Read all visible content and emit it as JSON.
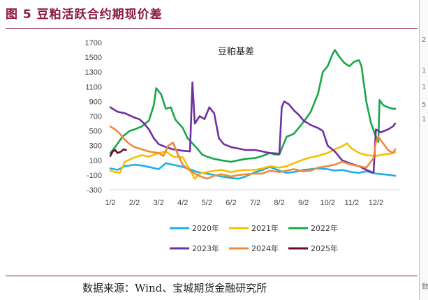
{
  "header": {
    "figure_title": "图 5 豆粕活跃合约期现价差"
  },
  "footer": {
    "source": "数据来源：Wind、宝城期货金融研究所"
  },
  "right_strip": {
    "glyphs": [
      "2",
      "1",
      "1",
      "5",
      "1",
      "数"
    ]
  },
  "chart_data": {
    "type": "line",
    "title": "豆粕基差",
    "xlabel": "",
    "ylabel": "",
    "ylim": [
      -300,
      1700
    ],
    "yticks": [
      1700,
      1500,
      1300,
      1100,
      900,
      700,
      500,
      300,
      100,
      -100,
      -300
    ],
    "x_domain": [
      0,
      12
    ],
    "xticks": [
      {
        "label": "1/2",
        "x": 0
      },
      {
        "label": "2/2",
        "x": 1
      },
      {
        "label": "3/2",
        "x": 2
      },
      {
        "label": "4/2",
        "x": 3
      },
      {
        "label": "5/2",
        "x": 4
      },
      {
        "label": "6/2",
        "x": 5
      },
      {
        "label": "7/2",
        "x": 6
      },
      {
        "label": "8/2",
        "x": 7
      },
      {
        "label": "9/2",
        "x": 8
      },
      {
        "label": "10/2",
        "x": 9
      },
      {
        "label": "11/2",
        "x": 10
      },
      {
        "label": "12/2",
        "x": 11
      }
    ],
    "grid": false,
    "legend_position": "bottom",
    "series": [
      {
        "name": "2020年",
        "color": "#1eb0e8",
        "points": [
          [
            0,
            -10
          ],
          [
            0.3,
            -30
          ],
          [
            0.6,
            20
          ],
          [
            1,
            40
          ],
          [
            1.3,
            30
          ],
          [
            1.6,
            10
          ],
          [
            2,
            -20
          ],
          [
            2.3,
            60
          ],
          [
            2.6,
            40
          ],
          [
            3,
            10
          ],
          [
            3.3,
            -20
          ],
          [
            3.6,
            -60
          ],
          [
            4,
            -80
          ],
          [
            4.3,
            -100
          ],
          [
            4.6,
            -120
          ],
          [
            5,
            -140
          ],
          [
            5.3,
            -150
          ],
          [
            5.6,
            -120
          ],
          [
            6,
            -60
          ],
          [
            6.3,
            -30
          ],
          [
            6.6,
            10
          ],
          [
            7,
            -40
          ],
          [
            7.3,
            -70
          ],
          [
            7.6,
            -60
          ],
          [
            8,
            -30
          ],
          [
            8.3,
            -20
          ],
          [
            8.6,
            -10
          ],
          [
            9,
            -20
          ],
          [
            9.3,
            -40
          ],
          [
            9.6,
            -30
          ],
          [
            10,
            -60
          ],
          [
            10.3,
            -70
          ],
          [
            10.6,
            -50
          ],
          [
            11,
            -80
          ],
          [
            11.3,
            -90
          ],
          [
            11.6,
            -100
          ],
          [
            11.8,
            -110
          ]
        ]
      },
      {
        "name": "2021年",
        "color": "#f5c000",
        "points": [
          [
            0,
            -40
          ],
          [
            0.2,
            -60
          ],
          [
            0.4,
            -70
          ],
          [
            0.6,
            80
          ],
          [
            1,
            140
          ],
          [
            1.3,
            170
          ],
          [
            1.6,
            150
          ],
          [
            2,
            200
          ],
          [
            2.3,
            220
          ],
          [
            2.6,
            150
          ],
          [
            3,
            140
          ],
          [
            3.3,
            -30
          ],
          [
            3.5,
            -150
          ],
          [
            3.7,
            -80
          ],
          [
            4,
            -60
          ],
          [
            4.3,
            -40
          ],
          [
            4.6,
            -30
          ],
          [
            5,
            -60
          ],
          [
            5.3,
            -40
          ],
          [
            5.6,
            -30
          ],
          [
            6,
            -30
          ],
          [
            6.3,
            -10
          ],
          [
            6.6,
            20
          ],
          [
            7,
            0
          ],
          [
            7.3,
            20
          ],
          [
            7.6,
            60
          ],
          [
            8,
            110
          ],
          [
            8.3,
            140
          ],
          [
            8.6,
            160
          ],
          [
            9,
            200
          ],
          [
            9.3,
            250
          ],
          [
            9.6,
            290
          ],
          [
            9.8,
            330
          ],
          [
            10,
            260
          ],
          [
            10.3,
            200
          ],
          [
            10.6,
            170
          ],
          [
            11,
            160
          ],
          [
            11.3,
            180
          ],
          [
            11.6,
            190
          ],
          [
            11.8,
            210
          ]
        ]
      },
      {
        "name": "2022年",
        "color": "#1aa64b",
        "points": [
          [
            0,
            200
          ],
          [
            0.2,
            280
          ],
          [
            0.5,
            420
          ],
          [
            0.8,
            500
          ],
          [
            1,
            520
          ],
          [
            1.3,
            560
          ],
          [
            1.6,
            640
          ],
          [
            1.8,
            850
          ],
          [
            1.9,
            1080
          ],
          [
            2.1,
            1000
          ],
          [
            2.3,
            800
          ],
          [
            2.5,
            820
          ],
          [
            2.7,
            650
          ],
          [
            3,
            540
          ],
          [
            3.2,
            400
          ],
          [
            3.4,
            330
          ],
          [
            3.6,
            260
          ],
          [
            3.8,
            180
          ],
          [
            4,
            150
          ],
          [
            4.3,
            120
          ],
          [
            4.6,
            100
          ],
          [
            5,
            80
          ],
          [
            5.3,
            100
          ],
          [
            5.6,
            120
          ],
          [
            6,
            130
          ],
          [
            6.3,
            160
          ],
          [
            6.6,
            200
          ],
          [
            6.8,
            180
          ],
          [
            7,
            180
          ],
          [
            7.3,
            420
          ],
          [
            7.6,
            460
          ],
          [
            8,
            620
          ],
          [
            8.3,
            760
          ],
          [
            8.6,
            1000
          ],
          [
            8.8,
            1300
          ],
          [
            9,
            1380
          ],
          [
            9.2,
            1540
          ],
          [
            9.3,
            1600
          ],
          [
            9.5,
            1500
          ],
          [
            9.7,
            1420
          ],
          [
            9.9,
            1380
          ],
          [
            10.1,
            1440
          ],
          [
            10.3,
            1460
          ],
          [
            10.4,
            1380
          ],
          [
            10.6,
            900
          ],
          [
            10.8,
            600
          ],
          [
            11,
            420
          ],
          [
            11.1,
            350
          ],
          [
            11.15,
            920
          ],
          [
            11.3,
            850
          ],
          [
            11.5,
            820
          ],
          [
            11.7,
            800
          ],
          [
            11.8,
            800
          ]
        ]
      },
      {
        "name": "2023年",
        "color": "#7030a0",
        "points": [
          [
            0,
            820
          ],
          [
            0.3,
            760
          ],
          [
            0.6,
            740
          ],
          [
            1,
            680
          ],
          [
            1.2,
            660
          ],
          [
            1.4,
            600
          ],
          [
            1.6,
            520
          ],
          [
            1.8,
            400
          ],
          [
            2,
            320
          ],
          [
            2.3,
            280
          ],
          [
            2.6,
            250
          ],
          [
            3,
            230
          ],
          [
            3.3,
            220
          ],
          [
            3.4,
            1160
          ],
          [
            3.5,
            600
          ],
          [
            3.7,
            700
          ],
          [
            3.9,
            660
          ],
          [
            4.1,
            820
          ],
          [
            4.3,
            740
          ],
          [
            4.5,
            400
          ],
          [
            4.7,
            320
          ],
          [
            5,
            280
          ],
          [
            5.3,
            260
          ],
          [
            5.6,
            240
          ],
          [
            6,
            240
          ],
          [
            6.3,
            220
          ],
          [
            6.6,
            200
          ],
          [
            7,
            190
          ],
          [
            7.1,
            820
          ],
          [
            7.2,
            900
          ],
          [
            7.4,
            860
          ],
          [
            7.6,
            780
          ],
          [
            7.8,
            720
          ],
          [
            8,
            640
          ],
          [
            8.3,
            580
          ],
          [
            8.6,
            540
          ],
          [
            8.8,
            500
          ],
          [
            9,
            300
          ],
          [
            9.3,
            220
          ],
          [
            9.6,
            100
          ],
          [
            10,
            50
          ],
          [
            10.3,
            20
          ],
          [
            10.6,
            -30
          ],
          [
            10.9,
            -70
          ],
          [
            11,
            520
          ],
          [
            11.2,
            480
          ],
          [
            11.5,
            520
          ],
          [
            11.7,
            560
          ],
          [
            11.8,
            600
          ]
        ]
      },
      {
        "name": "2024年",
        "color": "#f0883c",
        "points": [
          [
            0,
            560
          ],
          [
            0.2,
            520
          ],
          [
            0.4,
            460
          ],
          [
            0.6,
            380
          ],
          [
            0.8,
            320
          ],
          [
            1,
            280
          ],
          [
            1.3,
            250
          ],
          [
            1.6,
            220
          ],
          [
            2,
            200
          ],
          [
            2.2,
            160
          ],
          [
            2.4,
            300
          ],
          [
            2.6,
            340
          ],
          [
            2.8,
            180
          ],
          [
            3,
            40
          ],
          [
            3.3,
            -40
          ],
          [
            3.6,
            -100
          ],
          [
            4,
            -150
          ],
          [
            4.3,
            -110
          ],
          [
            4.6,
            -90
          ],
          [
            5,
            -120
          ],
          [
            5.3,
            -100
          ],
          [
            5.6,
            -90
          ],
          [
            6,
            -80
          ],
          [
            6.3,
            -80
          ],
          [
            6.6,
            -40
          ],
          [
            7,
            -60
          ],
          [
            7.3,
            -40
          ],
          [
            7.6,
            -20
          ],
          [
            8,
            -50
          ],
          [
            8.3,
            -40
          ],
          [
            8.6,
            0
          ],
          [
            9,
            20
          ],
          [
            9.3,
            40
          ],
          [
            9.6,
            80
          ],
          [
            10,
            40
          ],
          [
            10.3,
            20
          ],
          [
            10.6,
            0
          ],
          [
            10.9,
            130
          ],
          [
            11,
            350
          ],
          [
            11.1,
            420
          ],
          [
            11.3,
            330
          ],
          [
            11.5,
            240
          ],
          [
            11.7,
            200
          ],
          [
            11.8,
            250
          ]
        ]
      },
      {
        "name": "2025年",
        "color": "#6b0a2e",
        "points": [
          [
            0,
            160
          ],
          [
            0.1,
            220
          ],
          [
            0.2,
            240
          ],
          [
            0.3,
            200
          ],
          [
            0.45,
            220
          ],
          [
            0.55,
            250
          ],
          [
            0.65,
            240
          ]
        ]
      }
    ]
  }
}
